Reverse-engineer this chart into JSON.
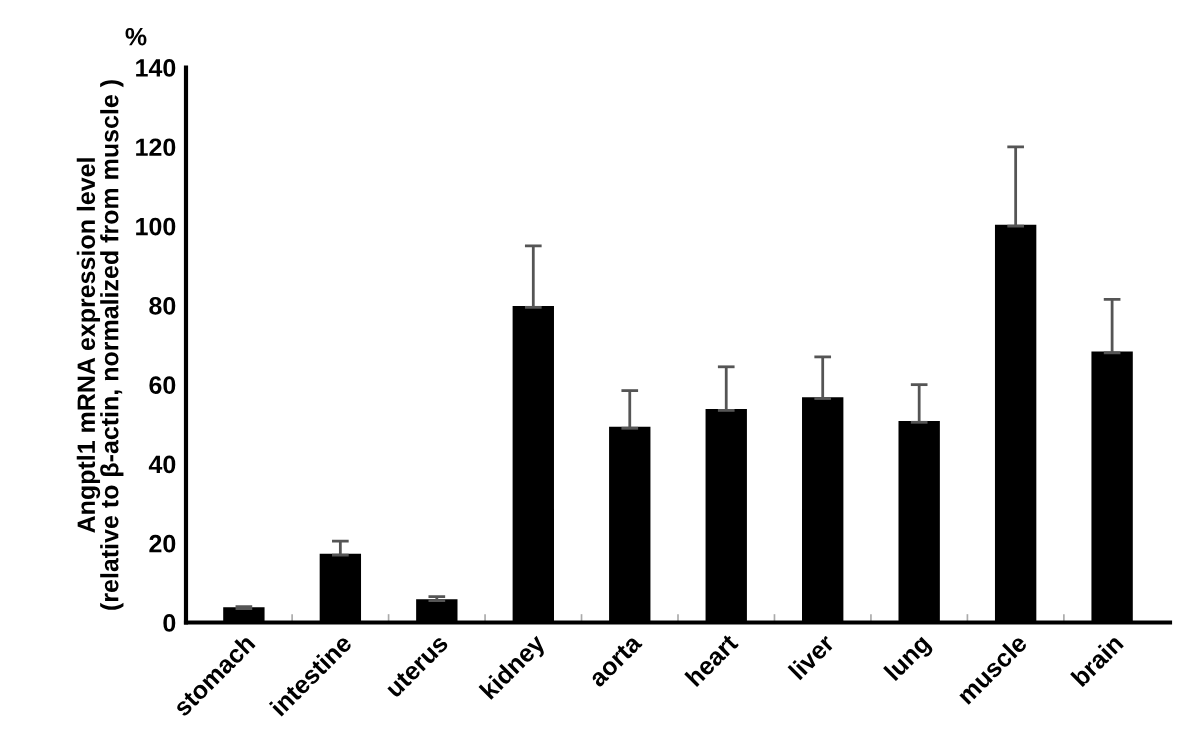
{
  "chart_data": {
    "type": "bar",
    "categories": [
      "stomach",
      "intestine",
      "uterus",
      "kidney",
      "aorta",
      "heart",
      "liver",
      "lung",
      "muscle",
      "brain"
    ],
    "values": [
      3.5,
      17,
      5.5,
      79.5,
      49,
      53.5,
      56.5,
      50.5,
      100,
      68
    ],
    "errors": [
      [
        3.5,
        4
      ],
      [
        17,
        20.5
      ],
      [
        5.5,
        6.5
      ],
      [
        79.5,
        95
      ],
      [
        49,
        58.5
      ],
      [
        53.5,
        64.5
      ],
      [
        56.5,
        67
      ],
      [
        50.5,
        60
      ],
      [
        100,
        120
      ],
      [
        68,
        81.5
      ]
    ],
    "color": "#000000",
    "ylabel": "Angptl1 mRNA expression level\n(relative to β-actin, normalized from muscle )",
    "annotations": [
      "%"
    ],
    "ylim": [
      0,
      140
    ],
    "yticks": [
      0,
      20,
      40,
      60,
      80,
      100,
      120,
      140
    ],
    "grid": false,
    "legend": false
  }
}
